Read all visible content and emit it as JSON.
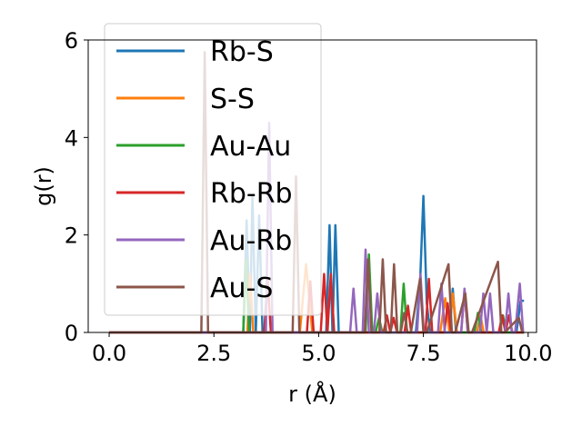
{
  "chart_data": {
    "type": "line",
    "xlabel": "r (Å)",
    "ylabel": "g(r)",
    "xlim": [
      -0.5,
      10.2
    ],
    "ylim": [
      0,
      6
    ],
    "xticks": [
      0.0,
      2.5,
      5.0,
      7.5,
      10.0
    ],
    "xtick_labels": [
      "0.0",
      "2.5",
      "5.0",
      "7.5",
      "10.0"
    ],
    "yticks": [
      0,
      2,
      4,
      6
    ],
    "ytick_labels": [
      "0",
      "2",
      "4",
      "6"
    ],
    "grid": false,
    "legend_position": "upper-left",
    "series": [
      {
        "name": "Rb-S",
        "color": "#1f77b4",
        "x": [
          0.0,
          3.2,
          3.28,
          3.36,
          3.42,
          3.5,
          3.58,
          3.66,
          5.18,
          5.26,
          5.33,
          5.4,
          5.48,
          7.32,
          7.42,
          7.5,
          7.58,
          7.66,
          8.12,
          8.2,
          8.28,
          9.72,
          9.82,
          9.9
        ],
        "y": [
          0.0,
          0.0,
          2.3,
          0.0,
          2.8,
          0.0,
          2.4,
          0.0,
          0.0,
          2.2,
          0.0,
          2.2,
          0.0,
          0.0,
          1.0,
          2.8,
          0.6,
          0.0,
          0.0,
          0.9,
          0.0,
          0.0,
          0.65,
          0.65
        ]
      },
      {
        "name": "S-S",
        "color": "#ff7f0e",
        "x": [
          0.0,
          3.3,
          3.36,
          3.44,
          4.55,
          4.7,
          4.85,
          7.9,
          8.02,
          8.12,
          8.2,
          8.3,
          8.78,
          8.86,
          8.94,
          9.02,
          9.9
        ],
        "y": [
          0.0,
          0.0,
          1.2,
          0.0,
          0.0,
          1.4,
          0.0,
          0.0,
          0.7,
          0.0,
          0.8,
          0.0,
          0.0,
          0.35,
          0.0,
          0.0,
          0.0
        ]
      },
      {
        "name": "Au-Au",
        "color": "#2ca02c",
        "x": [
          0.0,
          3.2,
          3.27,
          3.34,
          6.12,
          6.2,
          6.28,
          6.36,
          6.44,
          6.52,
          6.95,
          7.03,
          7.11,
          8.72,
          8.8,
          8.88,
          9.32,
          9.4,
          9.48,
          9.9
        ],
        "y": [
          0.0,
          0.0,
          1.5,
          0.0,
          0.0,
          1.6,
          0.0,
          0.0,
          0.3,
          0.0,
          0.0,
          1.0,
          0.0,
          0.0,
          0.4,
          0.0,
          0.0,
          0.35,
          0.0,
          0.0
        ]
      },
      {
        "name": "Rb-Rb",
        "color": "#d62728",
        "x": [
          0.0,
          3.7,
          3.78,
          3.86,
          4.72,
          4.8,
          4.88,
          5.05,
          5.13,
          5.21,
          5.29,
          5.37,
          6.55,
          6.63,
          6.71,
          6.79,
          6.87,
          7.05,
          7.13,
          7.21,
          7.55,
          7.63,
          7.71,
          8.0,
          8.08,
          8.16,
          8.4,
          8.48,
          8.56,
          9.3,
          9.38,
          9.46,
          9.54,
          9.62,
          9.9
        ],
        "y": [
          0.0,
          0.0,
          1.1,
          0.0,
          0.0,
          1.05,
          0.0,
          0.0,
          1.2,
          0.0,
          1.2,
          0.0,
          0.0,
          0.35,
          0.0,
          0.3,
          0.0,
          0.0,
          0.55,
          0.0,
          0.0,
          1.1,
          0.0,
          0.0,
          0.6,
          0.0,
          0.0,
          0.85,
          0.0,
          0.0,
          0.35,
          0.0,
          0.35,
          0.0,
          0.0
        ]
      },
      {
        "name": "Au-Rb",
        "color": "#9467bd",
        "x": [
          0.0,
          3.74,
          3.82,
          3.9,
          5.75,
          5.83,
          5.91,
          6.05,
          6.12,
          6.2,
          6.32,
          6.4,
          6.48,
          7.35,
          7.43,
          7.51,
          7.85,
          7.93,
          8.01,
          8.4,
          8.48,
          8.56,
          8.85,
          8.93,
          9.01,
          9.09,
          9.17,
          9.45,
          9.53,
          9.61,
          9.69,
          9.8,
          9.88
        ],
        "y": [
          0.0,
          0.0,
          4.3,
          0.0,
          0.0,
          0.9,
          0.0,
          0.0,
          1.7,
          0.0,
          0.0,
          0.8,
          0.0,
          0.0,
          1.2,
          0.0,
          0.0,
          1.0,
          0.0,
          0.0,
          0.9,
          0.0,
          0.0,
          0.8,
          0.0,
          0.8,
          0.0,
          0.0,
          0.8,
          0.0,
          0.0,
          1.0,
          0.0
        ]
      },
      {
        "name": "Au-S",
        "color": "#8c564b",
        "x": [
          0.0,
          2.2,
          2.28,
          2.36,
          4.38,
          4.46,
          4.54,
          6.1,
          6.18,
          6.26,
          6.45,
          6.53,
          6.61,
          6.72,
          6.8,
          6.88,
          6.96,
          7.04,
          7.12,
          7.2,
          7.42,
          7.5,
          7.58,
          8.1,
          8.18,
          8.26,
          8.5,
          8.58,
          8.66,
          9.28,
          9.36,
          9.44,
          9.78,
          9.86,
          9.9
        ],
        "y": [
          0.0,
          0.0,
          5.75,
          0.0,
          0.0,
          3.2,
          0.0,
          0.0,
          1.5,
          0.0,
          0.0,
          1.5,
          0.0,
          0.0,
          1.4,
          0.0,
          0.0,
          0.4,
          0.0,
          0.0,
          1.1,
          0.0,
          0.0,
          1.4,
          0.0,
          0.0,
          0.8,
          0.0,
          0.0,
          1.45,
          0.0,
          0.0,
          0.3,
          0.0,
          0.0
        ]
      }
    ]
  }
}
